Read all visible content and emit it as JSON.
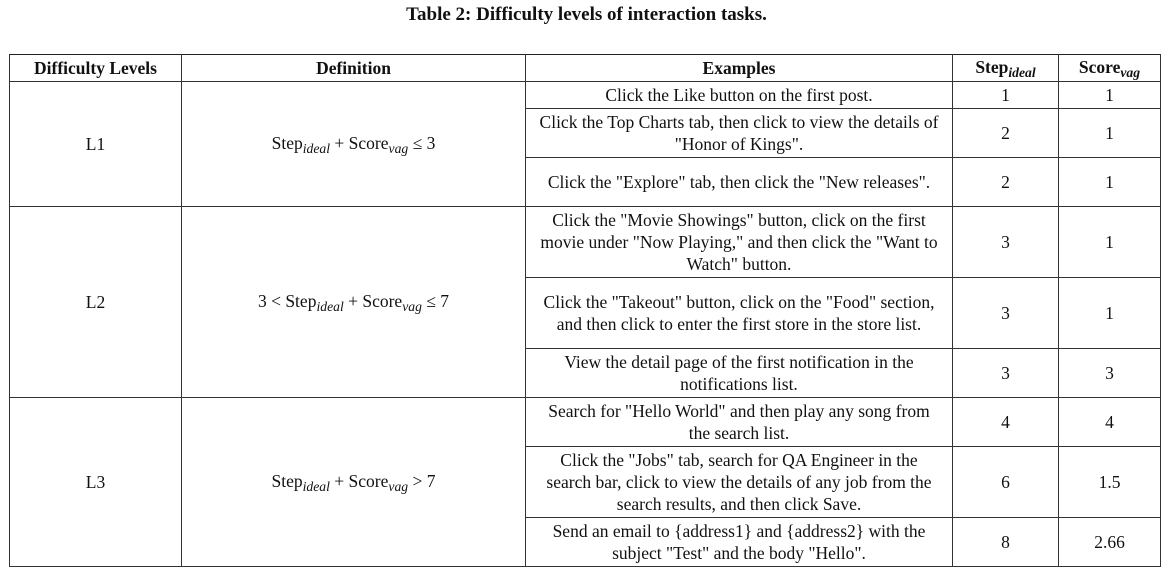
{
  "caption": "Table 2: Difficulty levels of interaction tasks.",
  "headers": {
    "level": "Difficulty Levels",
    "definition": "Definition",
    "examples": "Examples",
    "step_main": "Step",
    "step_sub": "ideal",
    "score_main": "Score",
    "score_sub": "vag"
  },
  "levels": [
    {
      "name": "L1",
      "def_prefix": "",
      "def_step": "Step",
      "def_step_sub": "ideal",
      "def_plus": " + ",
      "def_score": "Score",
      "def_score_sub": "vag",
      "def_suffix": " ≤ 3",
      "tasks": [
        {
          "example": "Click the Like button on the first post.",
          "step": "1",
          "score": "1"
        },
        {
          "example": "Click the Top Charts tab, then click to view the details of \"Honor of Kings\".",
          "step": "2",
          "score": "1"
        },
        {
          "example": "Click the \"Explore\" tab, then click the \"New releases\".",
          "step": "2",
          "score": "1"
        }
      ]
    },
    {
      "name": "L2",
      "def_prefix": "3 < ",
      "def_step": "Step",
      "def_step_sub": "ideal",
      "def_plus": " + ",
      "def_score": "Score",
      "def_score_sub": "vag",
      "def_suffix": " ≤ 7",
      "tasks": [
        {
          "example": "Click the \"Movie Showings\" button, click on the first movie under \"Now Playing,\" and then click the \"Want to Watch\" button.",
          "step": "3",
          "score": "1"
        },
        {
          "example": "Click the \"Takeout\" button, click on the \"Food\" section, and then click to enter the first store in the store list.",
          "step": "3",
          "score": "1"
        },
        {
          "example": "View the detail page of the first notification in the notifications list.",
          "step": "3",
          "score": "3"
        }
      ]
    },
    {
      "name": "L3",
      "def_prefix": "",
      "def_step": "Step",
      "def_step_sub": "ideal",
      "def_plus": " + ",
      "def_score": "Score",
      "def_score_sub": "vag",
      "def_suffix": " > 7",
      "tasks": [
        {
          "example": "Search for \"Hello World\" and then play any song from the search list.",
          "step": "4",
          "score": "4"
        },
        {
          "example": "Click the \"Jobs\" tab, search for QA Engineer in the search bar, click to view the details of any job from the search results, and then click Save.",
          "step": "6",
          "score": "1.5"
        },
        {
          "example": "Send an email to {address1} and {address2} with the subject \"Test\" and the body \"Hello\".",
          "step": "8",
          "score": "2.66"
        }
      ]
    }
  ]
}
